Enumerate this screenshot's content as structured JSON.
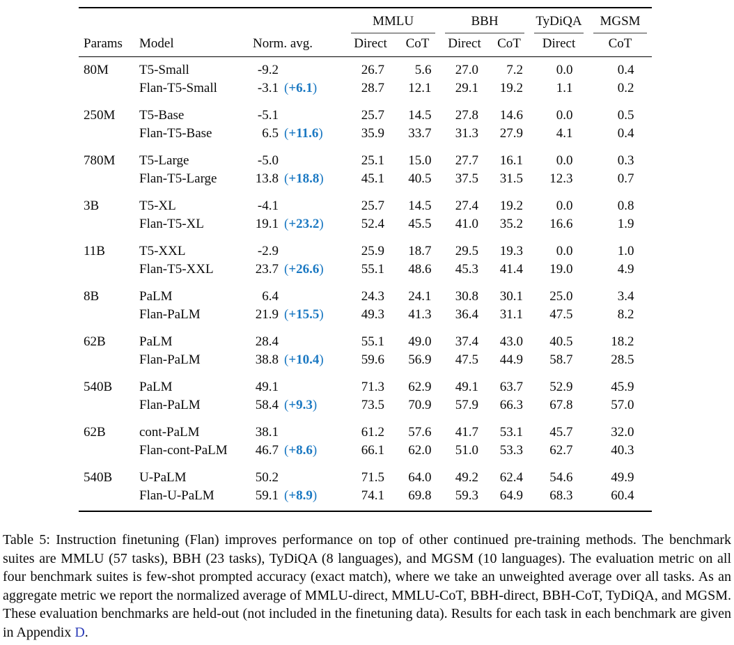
{
  "colors": {
    "delta_blue": "#1a78c2",
    "link_blue": "#2b3cb8"
  },
  "table": {
    "header": {
      "params": "Params",
      "model": "Model",
      "norm_avg": "Norm. avg.",
      "groups": [
        {
          "label": "MMLU",
          "subs": [
            "Direct",
            "CoT"
          ]
        },
        {
          "label": "BBH",
          "subs": [
            "Direct",
            "CoT"
          ]
        },
        {
          "label": "TyDiQA",
          "subs": [
            "Direct"
          ]
        },
        {
          "label": "MGSM",
          "subs": [
            "CoT"
          ]
        }
      ]
    },
    "groups": [
      {
        "params": "80M",
        "rows": [
          {
            "model": "T5-Small",
            "norm": "-9.2",
            "delta": null,
            "vals": [
              "26.7",
              "5.6",
              "27.0",
              "7.2",
              "0.0",
              "0.4"
            ]
          },
          {
            "model": "Flan-T5-Small",
            "norm": "-3.1",
            "delta": "+6.1",
            "vals": [
              "28.7",
              "12.1",
              "29.1",
              "19.2",
              "1.1",
              "0.2"
            ]
          }
        ]
      },
      {
        "params": "250M",
        "rows": [
          {
            "model": "T5-Base",
            "norm": "-5.1",
            "delta": null,
            "vals": [
              "25.7",
              "14.5",
              "27.8",
              "14.6",
              "0.0",
              "0.5"
            ]
          },
          {
            "model": "Flan-T5-Base",
            "norm": "6.5",
            "delta": "+11.6",
            "vals": [
              "35.9",
              "33.7",
              "31.3",
              "27.9",
              "4.1",
              "0.4"
            ]
          }
        ]
      },
      {
        "params": "780M",
        "rows": [
          {
            "model": "T5-Large",
            "norm": "-5.0",
            "delta": null,
            "vals": [
              "25.1",
              "15.0",
              "27.7",
              "16.1",
              "0.0",
              "0.3"
            ]
          },
          {
            "model": "Flan-T5-Large",
            "norm": "13.8",
            "delta": "+18.8",
            "vals": [
              "45.1",
              "40.5",
              "37.5",
              "31.5",
              "12.3",
              "0.7"
            ]
          }
        ]
      },
      {
        "params": "3B",
        "rows": [
          {
            "model": "T5-XL",
            "norm": "-4.1",
            "delta": null,
            "vals": [
              "25.7",
              "14.5",
              "27.4",
              "19.2",
              "0.0",
              "0.8"
            ]
          },
          {
            "model": "Flan-T5-XL",
            "norm": "19.1",
            "delta": "+23.2",
            "vals": [
              "52.4",
              "45.5",
              "41.0",
              "35.2",
              "16.6",
              "1.9"
            ]
          }
        ]
      },
      {
        "params": "11B",
        "rows": [
          {
            "model": "T5-XXL",
            "norm": "-2.9",
            "delta": null,
            "vals": [
              "25.9",
              "18.7",
              "29.5",
              "19.3",
              "0.0",
              "1.0"
            ]
          },
          {
            "model": "Flan-T5-XXL",
            "norm": "23.7",
            "delta": "+26.6",
            "vals": [
              "55.1",
              "48.6",
              "45.3",
              "41.4",
              "19.0",
              "4.9"
            ]
          }
        ]
      },
      {
        "params": "8B",
        "rows": [
          {
            "model": "PaLM",
            "norm": "6.4",
            "delta": null,
            "vals": [
              "24.3",
              "24.1",
              "30.8",
              "30.1",
              "25.0",
              "3.4"
            ]
          },
          {
            "model": "Flan-PaLM",
            "norm": "21.9",
            "delta": "+15.5",
            "vals": [
              "49.3",
              "41.3",
              "36.4",
              "31.1",
              "47.5",
              "8.2"
            ]
          }
        ]
      },
      {
        "params": "62B",
        "rows": [
          {
            "model": "PaLM",
            "norm": "28.4",
            "delta": null,
            "vals": [
              "55.1",
              "49.0",
              "37.4",
              "43.0",
              "40.5",
              "18.2"
            ]
          },
          {
            "model": "Flan-PaLM",
            "norm": "38.8",
            "delta": "+10.4",
            "vals": [
              "59.6",
              "56.9",
              "47.5",
              "44.9",
              "58.7",
              "28.5"
            ]
          }
        ]
      },
      {
        "params": "540B",
        "rows": [
          {
            "model": "PaLM",
            "norm": "49.1",
            "delta": null,
            "vals": [
              "71.3",
              "62.9",
              "49.1",
              "63.7",
              "52.9",
              "45.9"
            ]
          },
          {
            "model": "Flan-PaLM",
            "norm": "58.4",
            "delta": "+9.3",
            "vals": [
              "73.5",
              "70.9",
              "57.9",
              "66.3",
              "67.8",
              "57.0"
            ]
          }
        ]
      },
      {
        "params": "62B",
        "rows": [
          {
            "model": "cont-PaLM",
            "norm": "38.1",
            "delta": null,
            "vals": [
              "61.2",
              "57.6",
              "41.7",
              "53.1",
              "45.7",
              "32.0"
            ]
          },
          {
            "model": "Flan-cont-PaLM",
            "norm": "46.7",
            "delta": "+8.6",
            "vals": [
              "66.1",
              "62.0",
              "51.0",
              "53.3",
              "62.7",
              "40.3"
            ]
          }
        ]
      },
      {
        "params": "540B",
        "rows": [
          {
            "model": "U-PaLM",
            "norm": "50.2",
            "delta": null,
            "vals": [
              "71.5",
              "64.0",
              "49.2",
              "62.4",
              "54.6",
              "49.9"
            ]
          },
          {
            "model": "Flan-U-PaLM",
            "norm": "59.1",
            "delta": "+8.9",
            "vals": [
              "74.1",
              "69.8",
              "59.3",
              "64.9",
              "68.3",
              "60.4"
            ]
          }
        ]
      }
    ]
  },
  "caption": {
    "text_before_link": "Table 5: Instruction finetuning (Flan) improves performance on top of other continued pre-training methods. The benchmark suites are MMLU (57 tasks), BBH (23 tasks), TyDiQA (8 languages), and MGSM (10 languages). The evaluation metric on all four benchmark suites is few-shot prompted accuracy (exact match), where we take an unweighted average over all tasks. As an aggregate metric we report the normalized average of MMLU-direct, MMLU-CoT, BBH-direct, BBH-CoT, TyDiQA, and MGSM. These evaluation benchmarks are held-out (not included in the finetuning data).  Results for each task in each benchmark are given in Appendix ",
    "link_text": "D",
    "text_after_link": "."
  }
}
